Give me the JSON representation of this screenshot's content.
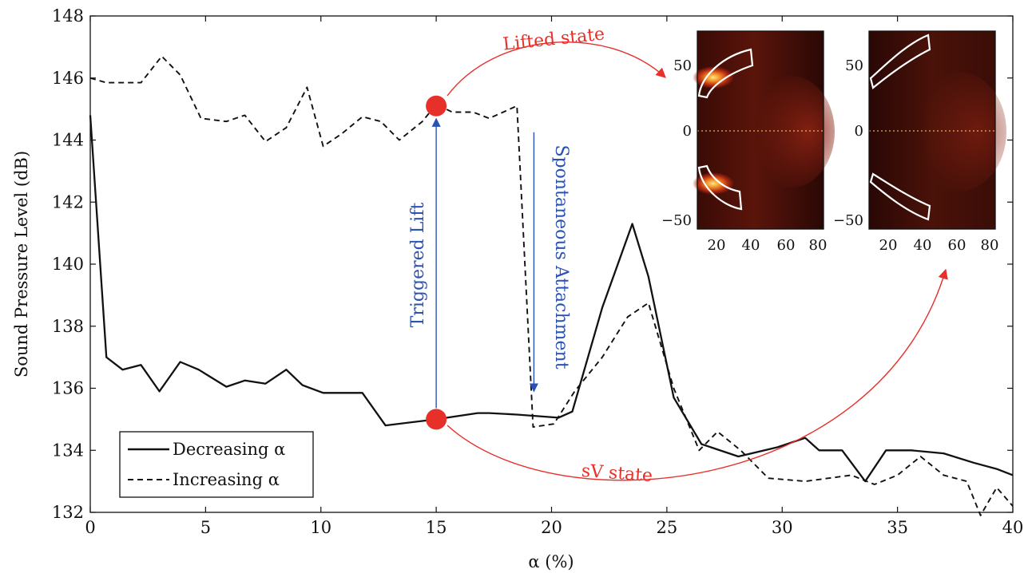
{
  "chart_data": {
    "type": "line",
    "title": "",
    "xlabel": "α (%)",
    "ylabel": "Sound Pressure Level (dB)",
    "xlim": [
      0,
      40
    ],
    "ylim": [
      132,
      148
    ],
    "x_ticks": [
      "0",
      "5",
      "10",
      "15",
      "20",
      "25",
      "30",
      "35",
      "40"
    ],
    "y_ticks": [
      "132",
      "134",
      "136",
      "138",
      "140",
      "142",
      "144",
      "146",
      "148"
    ],
    "grid": false,
    "legend_position": "bottom-left",
    "series": [
      {
        "name": "Decreasing α",
        "style": "solid",
        "x": [
          0,
          0.7,
          1.4,
          2.2,
          3.0,
          3.9,
          4.7,
          5.9,
          6.7,
          7.6,
          8.5,
          9.2,
          10.1,
          10.9,
          11.8,
          12.8,
          15.0,
          16.8,
          17.3,
          18.5,
          20.3,
          20.9,
          22.2,
          23.5,
          24.2,
          25.3,
          26.5,
          28.1,
          29.8,
          31.0,
          31.6,
          32.6,
          33.6,
          34.5,
          35.6,
          37.0,
          38.3,
          39.3,
          40.0
        ],
        "y": [
          144.8,
          137.0,
          136.6,
          136.75,
          135.9,
          136.85,
          136.6,
          136.05,
          136.25,
          136.15,
          136.6,
          136.1,
          135.85,
          135.85,
          135.85,
          134.8,
          135.0,
          135.2,
          135.2,
          135.15,
          135.05,
          135.25,
          138.6,
          141.3,
          139.6,
          135.7,
          134.2,
          133.8,
          134.1,
          134.4,
          134.0,
          134.0,
          133.0,
          134.0,
          134.0,
          133.9,
          133.6,
          133.4,
          133.2
        ]
      },
      {
        "name": "Increasing α",
        "style": "dashed",
        "x": [
          0,
          0.7,
          1.4,
          2.2,
          3.1,
          3.9,
          4.8,
          5.9,
          6.7,
          7.6,
          8.5,
          9.4,
          10.1,
          10.9,
          11.8,
          12.6,
          13.4,
          14.4,
          15.0,
          15.7,
          16.6,
          17.3,
          18.2,
          18.5,
          19.2,
          20.1,
          21.0,
          22.2,
          23.3,
          24.2,
          25.3,
          26.4,
          27.2,
          28.2,
          29.4,
          31.0,
          33.0,
          34.0,
          35.0,
          36.0,
          37.0,
          38.0,
          38.6,
          39.3,
          40.0
        ],
        "y": [
          146.0,
          145.85,
          145.85,
          145.85,
          146.7,
          146.1,
          144.7,
          144.6,
          144.8,
          143.95,
          144.4,
          145.7,
          143.8,
          144.2,
          144.75,
          144.6,
          144.0,
          144.6,
          145.15,
          144.9,
          144.9,
          144.7,
          145.0,
          145.1,
          134.75,
          134.85,
          135.9,
          137.0,
          138.3,
          138.75,
          136.0,
          134.0,
          134.6,
          134.0,
          133.1,
          133.0,
          133.2,
          132.9,
          133.2,
          133.8,
          133.2,
          133.0,
          131.9,
          132.8,
          132.2
        ]
      }
    ],
    "markers": [
      {
        "label": "Lifted state",
        "x": 15,
        "y": 145.1
      },
      {
        "label": "sV state",
        "x": 15,
        "y": 135.0
      }
    ],
    "annotations": [
      {
        "text": "Triggered Lift",
        "from_x": 15,
        "from_y": 135.0,
        "to_x": 15,
        "to_y": 145.1
      },
      {
        "text": "Spontaneous Attachment",
        "from_x": 19.2,
        "from_y": 144.2,
        "to_x": 19.2,
        "to_y": 135.9
      }
    ],
    "insets": [
      {
        "x_ticks": [
          "20",
          "40",
          "60",
          "80"
        ],
        "y_ticks": [
          "50",
          "0",
          "−50"
        ],
        "colormap": "black-red-yellow"
      },
      {
        "x_ticks": [
          "20",
          "40",
          "60",
          "80"
        ],
        "y_ticks": [
          "50",
          "0",
          "−50"
        ],
        "colormap": "black-red-yellow"
      }
    ],
    "colors": {
      "lifted": "#e8302a",
      "arrow_blue": "#2a52b5",
      "lines": "#111111"
    }
  }
}
